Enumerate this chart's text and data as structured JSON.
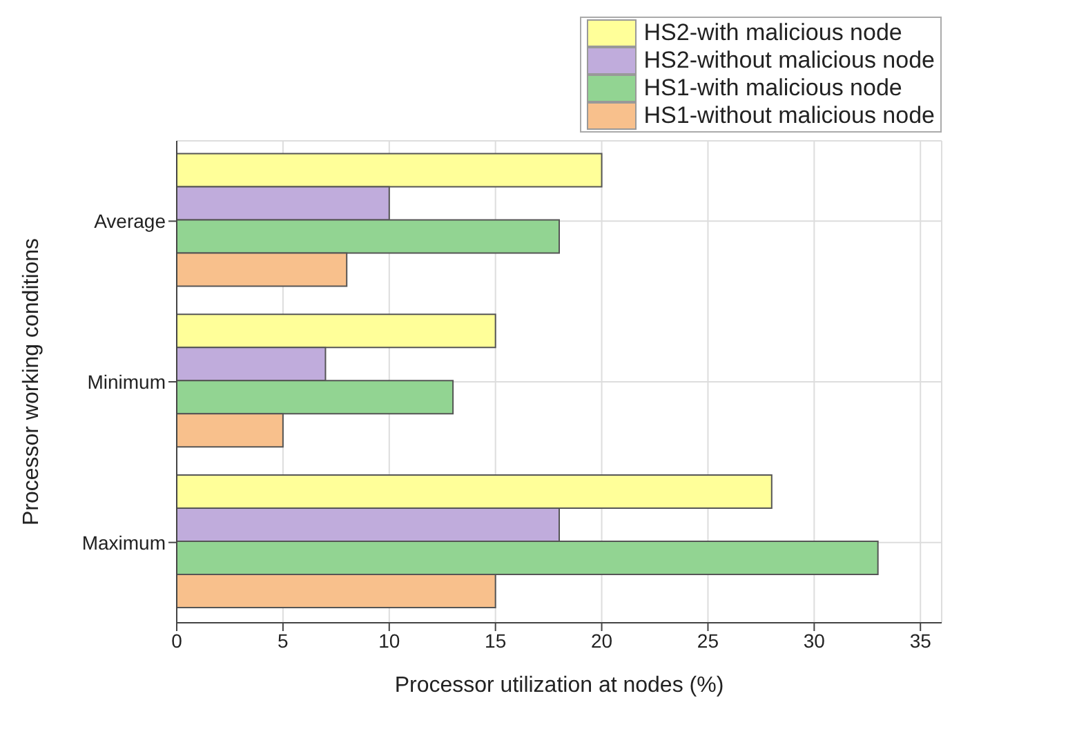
{
  "chart_data": {
    "type": "bar",
    "orientation": "horizontal",
    "xlabel": "Processor utilization at nodes (%)",
    "ylabel": "Processor working conditions",
    "categories": [
      "Average",
      "Minimum",
      "Maximum"
    ],
    "series": [
      {
        "name": "HS2-with malicious node",
        "color": "#ffff99",
        "values": [
          20,
          15,
          28
        ]
      },
      {
        "name": "HS2-without malicious node",
        "color": "#c0acdc",
        "values": [
          10,
          7,
          18
        ]
      },
      {
        "name": "HS1-with malicious node",
        "color": "#92d492",
        "values": [
          18,
          13,
          33
        ]
      },
      {
        "name": "HS1-without malicious node",
        "color": "#f8c08c",
        "values": [
          8,
          5,
          15
        ]
      }
    ],
    "xlim": [
      0,
      36
    ],
    "xticks": [
      0,
      5,
      10,
      15,
      20,
      25,
      30,
      35
    ],
    "grid": true,
    "legend": "top right"
  }
}
